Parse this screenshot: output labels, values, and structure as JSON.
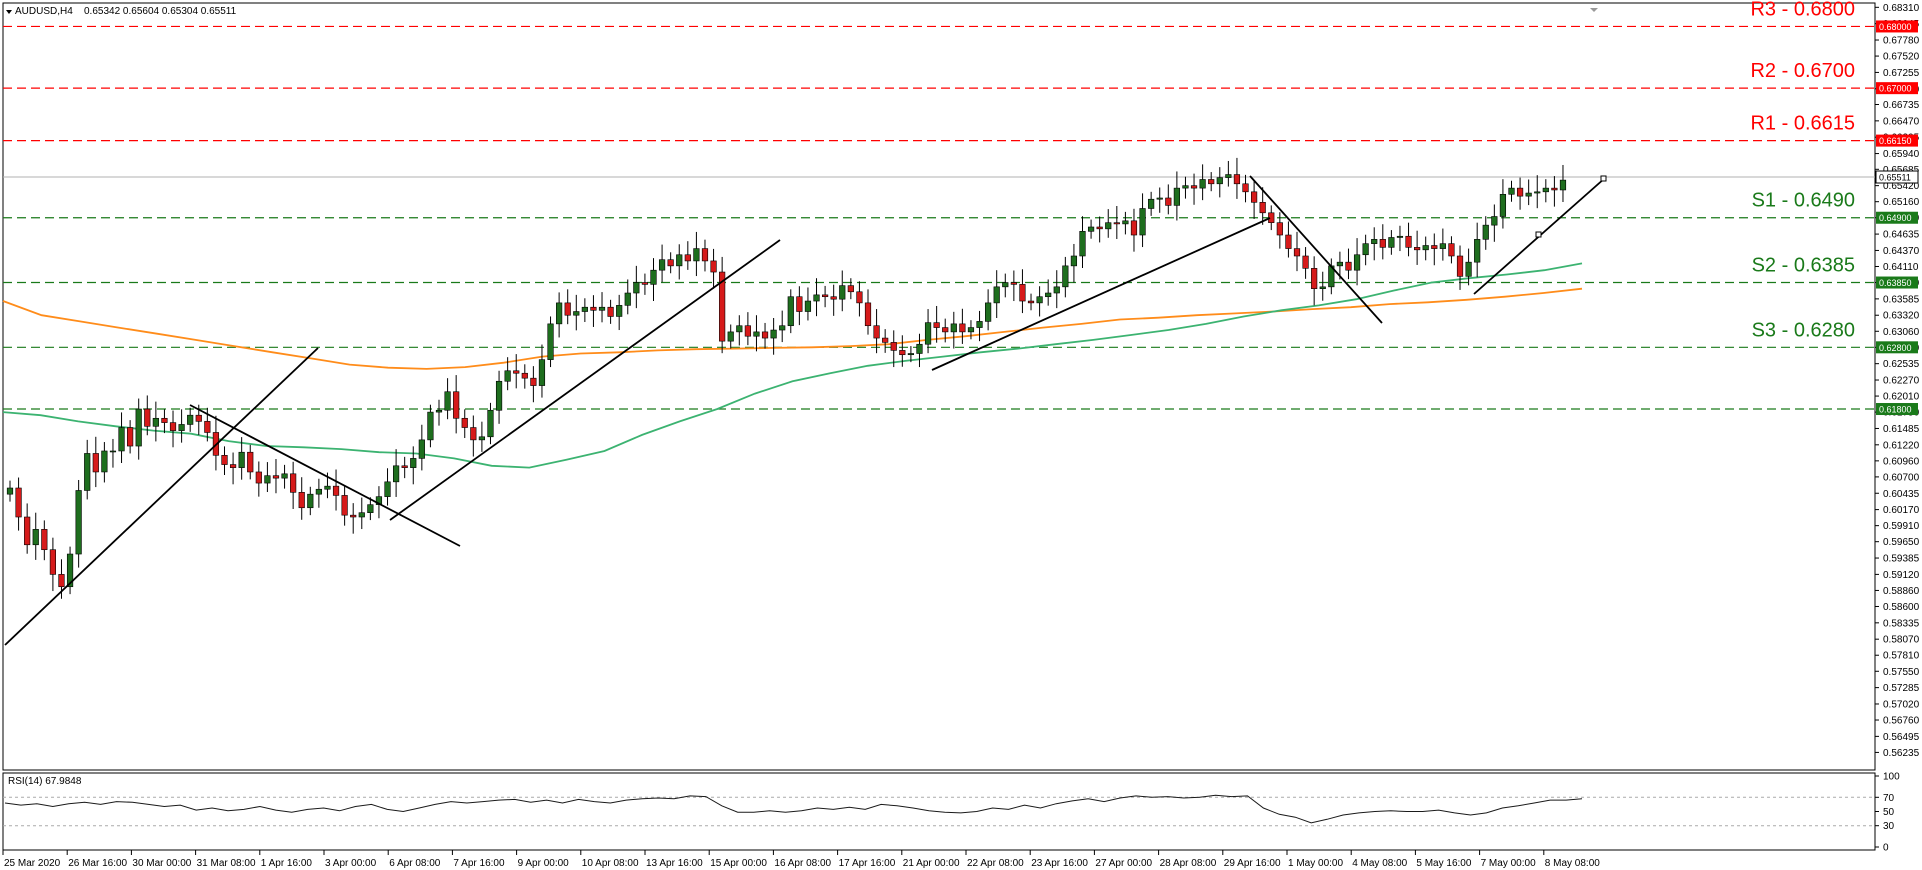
{
  "header": {
    "symbol": "AUDUSD,H4",
    "ohlc": "0.65342 0.65604 0.65304 0.65511",
    "rsi_label": "RSI(14) 67.9848"
  },
  "chart_data": [
    {
      "type": "candlestick",
      "title": "AUDUSD,H4",
      "ylim": [
        0.5595,
        0.6838
      ],
      "y_ticks": [
        "0.68310",
        "0.68045",
        "0.67780",
        "0.67520",
        "0.67255",
        "0.66990",
        "0.66735",
        "0.66470",
        "0.66205",
        "0.65940",
        "0.65685",
        "0.65420",
        "0.65160",
        "0.64900",
        "0.64635",
        "0.64370",
        "0.64110",
        "0.63850",
        "0.63585",
        "0.63320",
        "0.63060",
        "0.62800",
        "0.62535",
        "0.62270",
        "0.62010",
        "0.61750",
        "0.61485",
        "0.61220",
        "0.60960",
        "0.60700",
        "0.60435",
        "0.60170",
        "0.59910",
        "0.59650",
        "0.59385",
        "0.59120",
        "0.58860",
        "0.58600",
        "0.58335",
        "0.58070",
        "0.57810",
        "0.57550",
        "0.57285",
        "0.57020",
        "0.56760",
        "0.56495",
        "0.56235"
      ],
      "x_ticks": [
        "25 Mar 2020",
        "26 Mar 16:00",
        "30 Mar 00:00",
        "31 Mar 08:00",
        "1 Apr 16:00",
        "3 Apr 00:00",
        "6 Apr 08:00",
        "7 Apr 16:00",
        "9 Apr 00:00",
        "10 Apr 08:00",
        "13 Apr 16:00",
        "15 Apr 00:00",
        "16 Apr 08:00",
        "17 Apr 16:00",
        "21 Apr 00:00",
        "22 Apr 08:00",
        "23 Apr 16:00",
        "27 Apr 00:00",
        "28 Apr 08:00",
        "29 Apr 16:00",
        "1 May 00:00",
        "4 May 08:00",
        "5 May 16:00",
        "7 May 00:00",
        "8 May 08:00"
      ],
      "last_price": 0.65511,
      "current_price_line": 0.6556,
      "levels": [
        {
          "name": "R3 - 0.6800",
          "value": 0.68,
          "tag": "0.68000",
          "color": "#ff0000"
        },
        {
          "name": "R2 - 0.6700",
          "value": 0.67,
          "tag": "0.67000",
          "color": "#ff0000"
        },
        {
          "name": "R1 - 0.6615",
          "value": 0.6615,
          "tag": "0.66150",
          "color": "#ff0000"
        },
        {
          "name": "S1 - 0.6490",
          "value": 0.649,
          "tag": "0.64900",
          "color": "#1a7a1a"
        },
        {
          "name": "S2 - 0.6385",
          "value": 0.6385,
          "tag": "0.63850",
          "color": "#1a7a1a"
        },
        {
          "name": "S3 - 0.6280",
          "value": 0.628,
          "tag": "0.62800",
          "color": "#1a7a1a"
        },
        {
          "name": "",
          "value": 0.618,
          "tag": "0.61800",
          "color": "#1a7a1a"
        }
      ],
      "closes": [
        0.6052,
        0.6005,
        0.596,
        0.5985,
        0.5952,
        0.5912,
        0.5892,
        0.5945,
        0.6048,
        0.6108,
        0.6078,
        0.6112,
        0.6112,
        0.615,
        0.612,
        0.618,
        0.6152,
        0.6165,
        0.6158,
        0.6145,
        0.6155,
        0.617,
        0.616,
        0.6142,
        0.6105,
        0.609,
        0.6085,
        0.611,
        0.6078,
        0.606,
        0.6072,
        0.6068,
        0.6075,
        0.6045,
        0.602,
        0.6042,
        0.605,
        0.6055,
        0.604,
        0.6008,
        0.6005,
        0.6012,
        0.6025,
        0.6038,
        0.6062,
        0.6088,
        0.6085,
        0.61,
        0.613,
        0.6175,
        0.6178,
        0.6208,
        0.6165,
        0.615,
        0.613,
        0.6135,
        0.6178,
        0.6225,
        0.6242,
        0.6238,
        0.623,
        0.6218,
        0.626,
        0.6318,
        0.6352,
        0.6332,
        0.6338,
        0.6345,
        0.634,
        0.6345,
        0.633,
        0.6348,
        0.6368,
        0.6385,
        0.6382,
        0.6405,
        0.6422,
        0.6412,
        0.643,
        0.642,
        0.644,
        0.642,
        0.6402,
        0.629,
        0.6305,
        0.6315,
        0.6298,
        0.6305,
        0.6295,
        0.6308,
        0.6315,
        0.6362,
        0.6338,
        0.6355,
        0.6365,
        0.6362,
        0.6358,
        0.638,
        0.637,
        0.6352,
        0.6315,
        0.6295,
        0.6288,
        0.6275,
        0.6268,
        0.627,
        0.6285,
        0.632,
        0.6312,
        0.6305,
        0.6318,
        0.6305,
        0.6312,
        0.6322,
        0.6352,
        0.6378,
        0.6385,
        0.6382,
        0.6355,
        0.6352,
        0.6362,
        0.6368,
        0.6378,
        0.6412,
        0.6428,
        0.6468,
        0.6475,
        0.6472,
        0.6482,
        0.648,
        0.6485,
        0.6462,
        0.6505,
        0.652,
        0.6522,
        0.651,
        0.6538,
        0.6542,
        0.6538,
        0.6552,
        0.6545,
        0.6555,
        0.656,
        0.6545,
        0.6532,
        0.6515,
        0.6498,
        0.6482,
        0.6462,
        0.644,
        0.6428,
        0.6408,
        0.6375,
        0.6378,
        0.6412,
        0.6418,
        0.6405,
        0.643,
        0.6448,
        0.6455,
        0.6442,
        0.6458,
        0.646,
        0.6442,
        0.6438,
        0.6445,
        0.644,
        0.6448,
        0.6428,
        0.6395,
        0.6418,
        0.6455,
        0.6478,
        0.6492,
        0.6528,
        0.6538,
        0.6525,
        0.653,
        0.6532,
        0.6538,
        0.6535,
        0.6551
      ],
      "ma_green": [
        0.6175,
        0.617,
        0.616,
        0.6152,
        0.6145,
        0.614,
        0.6128,
        0.612,
        0.6118,
        0.6115,
        0.611,
        0.6108,
        0.61,
        0.6088,
        0.6085,
        0.6098,
        0.6112,
        0.6138,
        0.616,
        0.618,
        0.6205,
        0.6225,
        0.6238,
        0.625,
        0.6258,
        0.6265,
        0.6272,
        0.6278,
        0.6285,
        0.6292,
        0.63,
        0.6308,
        0.6318,
        0.633,
        0.634,
        0.6348,
        0.6358,
        0.6372,
        0.6385,
        0.6392,
        0.6398,
        0.6405,
        0.6416
      ],
      "ma_orange": [
        0.6355,
        0.6332,
        0.6322,
        0.6312,
        0.6302,
        0.6292,
        0.6282,
        0.6272,
        0.6262,
        0.6252,
        0.6247,
        0.6245,
        0.6248,
        0.6255,
        0.6265,
        0.627,
        0.6272,
        0.6275,
        0.6277,
        0.6278,
        0.6279,
        0.628,
        0.6282,
        0.6285,
        0.6292,
        0.6298,
        0.6305,
        0.6312,
        0.6318,
        0.6325,
        0.6328,
        0.6332,
        0.6335,
        0.6338,
        0.6342,
        0.6345,
        0.635,
        0.6353,
        0.6357,
        0.6362,
        0.6368,
        0.6375
      ],
      "colors": {
        "bull": "#1e6e1e",
        "bear": "#d61a1a",
        "ma_green": "#3cb371",
        "ma_orange": "#ff8c1a"
      }
    },
    {
      "type": "line",
      "title": "RSI(14) 67.9848",
      "ylim": [
        0,
        100
      ],
      "y_ticks": [
        "100",
        "70",
        "50",
        "30",
        "0"
      ],
      "levels": [
        70,
        30
      ],
      "values": [
        62,
        59,
        61,
        57,
        61,
        63,
        60,
        64,
        63,
        60,
        57,
        59,
        52,
        55,
        51,
        53,
        57,
        52,
        49,
        53,
        55,
        51,
        57,
        60,
        53,
        50,
        55,
        60,
        64,
        62,
        64,
        66,
        67,
        63,
        66,
        62,
        67,
        64,
        62,
        66,
        68,
        69,
        68,
        72,
        71,
        58,
        49,
        49,
        51,
        49,
        51,
        55,
        53,
        56,
        53,
        60,
        58,
        55,
        51,
        49,
        48,
        50,
        55,
        53,
        59,
        55,
        61,
        65,
        68,
        64,
        69,
        72,
        70,
        71,
        69,
        70,
        73,
        71,
        72,
        55,
        46,
        42,
        34,
        39,
        45,
        48,
        50,
        51,
        50,
        50,
        52,
        48,
        45,
        48,
        55,
        58,
        62,
        66,
        66,
        68
      ]
    }
  ]
}
